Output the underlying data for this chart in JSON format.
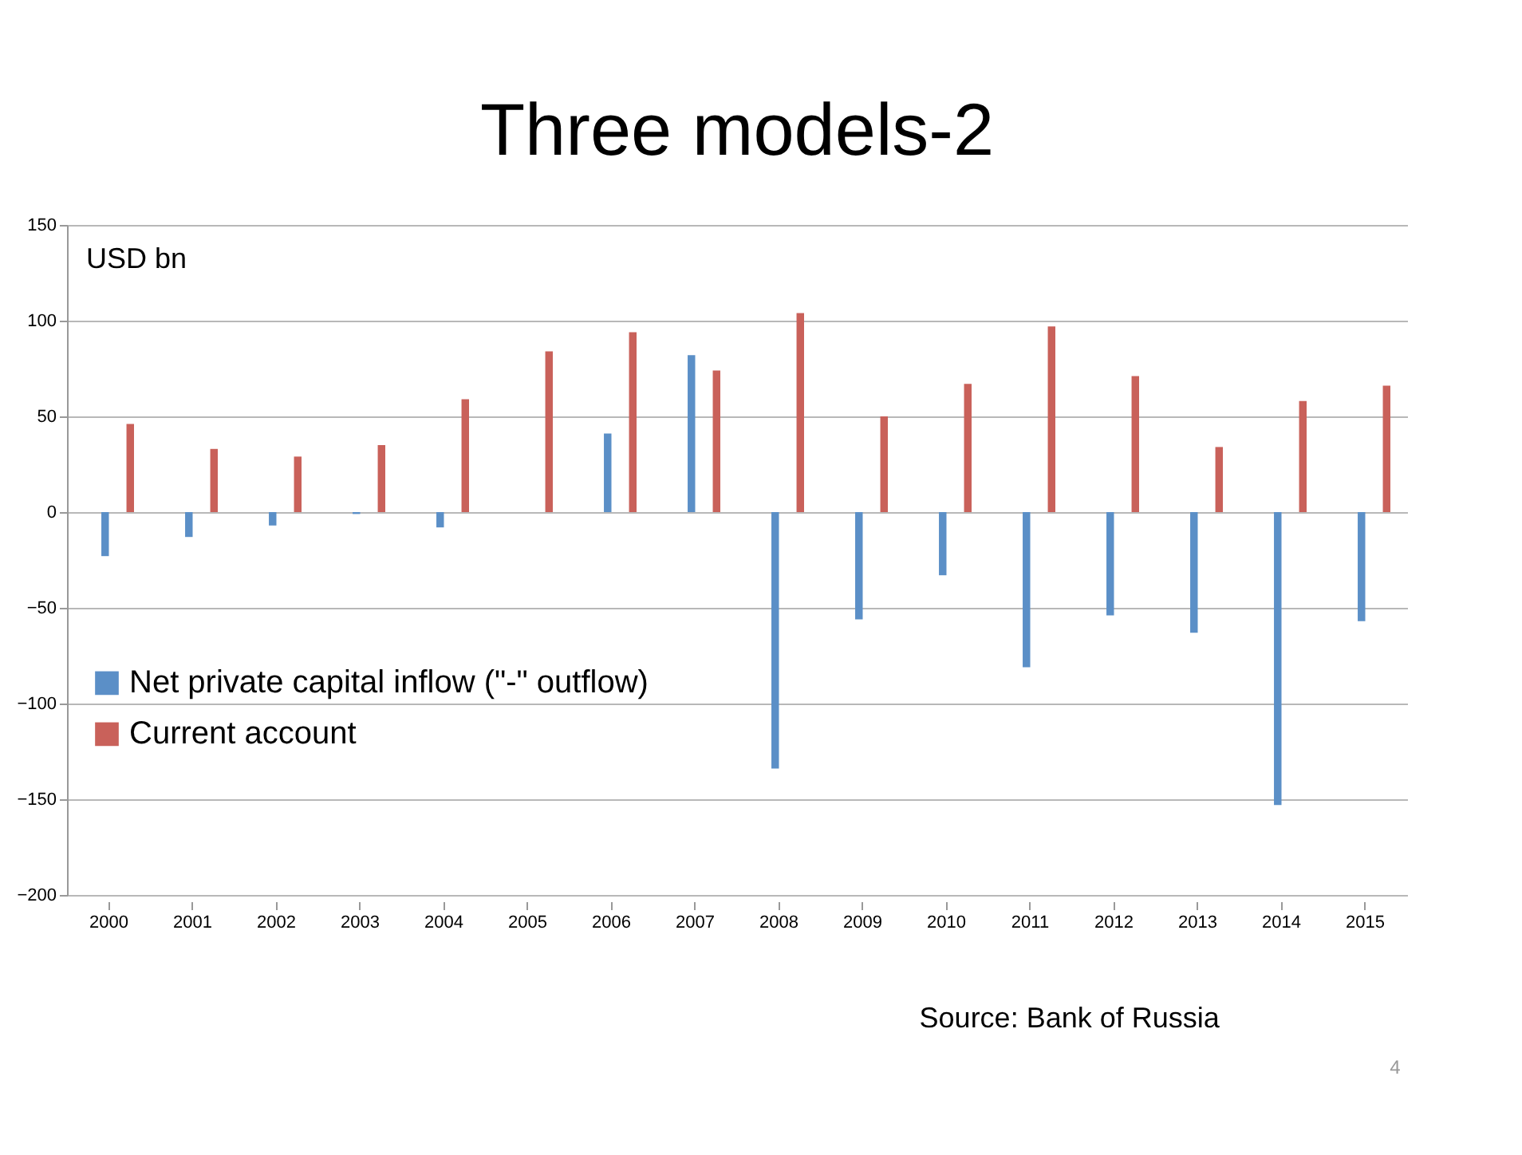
{
  "chart_data": {
    "type": "bar",
    "title": "Three models-2",
    "categories": [
      "2000",
      "2001",
      "2002",
      "2003",
      "2004",
      "2005",
      "2006",
      "2007",
      "2008",
      "2009",
      "2010",
      "2011",
      "2012",
      "2013",
      "2014",
      "2015"
    ],
    "series": [
      {
        "name": "Net private capital inflow (\"-\" outflow)",
        "color": "#5b8fc7",
        "values": [
          -23,
          -13,
          -7,
          -1,
          -8,
          0,
          41,
          82,
          -134,
          -56,
          -33,
          -81,
          -54,
          -63,
          -153,
          -57
        ]
      },
      {
        "name": "Current account",
        "color": "#c9615a",
        "values": [
          46,
          33,
          29,
          35,
          59,
          84,
          94,
          74,
          104,
          50,
          67,
          97,
          71,
          34,
          58,
          66
        ]
      }
    ],
    "ylim": [
      -200,
      150
    ],
    "yticks": [
      -200,
      -150,
      -100,
      -50,
      0,
      50,
      100,
      150
    ],
    "grid": "y",
    "legend": "left",
    "annotations": [
      "USD bn",
      "Source: Bank of Russia",
      "4"
    ]
  }
}
